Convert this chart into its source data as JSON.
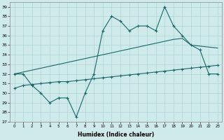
{
  "xlabel": "Humidex (Indice chaleur)",
  "background_color": "#ceeaea",
  "grid_color": "#aed4d4",
  "line_color": "#1a6868",
  "ylim": [
    27,
    39.5
  ],
  "yticks": [
    27,
    28,
    29,
    30,
    31,
    32,
    33,
    34,
    35,
    36,
    37,
    38,
    39
  ],
  "series1": [
    32.0,
    32.0,
    30.8,
    30.0,
    29.0,
    29.5,
    29.5,
    27.5,
    30.0,
    32.0,
    36.5,
    38.0,
    37.5,
    36.5,
    37.0,
    37.0,
    36.5,
    39.0,
    37.0,
    36.0,
    35.0,
    34.5,
    32.0,
    32.0
  ],
  "series2": [
    30.5,
    30.8,
    30.9,
    31.0,
    31.1,
    31.2,
    31.2,
    31.3,
    31.4,
    31.5,
    31.6,
    31.7,
    31.8,
    31.9,
    32.0,
    32.1,
    32.2,
    32.3,
    32.4,
    32.5,
    32.6,
    32.7,
    32.8,
    32.9
  ],
  "series3": [
    32.0,
    32.2,
    32.4,
    32.6,
    32.8,
    33.0,
    33.2,
    33.4,
    33.6,
    33.8,
    34.0,
    34.2,
    34.4,
    34.6,
    34.8,
    35.0,
    35.2,
    35.4,
    35.6,
    35.7,
    35.0,
    34.9,
    34.8,
    34.7
  ]
}
